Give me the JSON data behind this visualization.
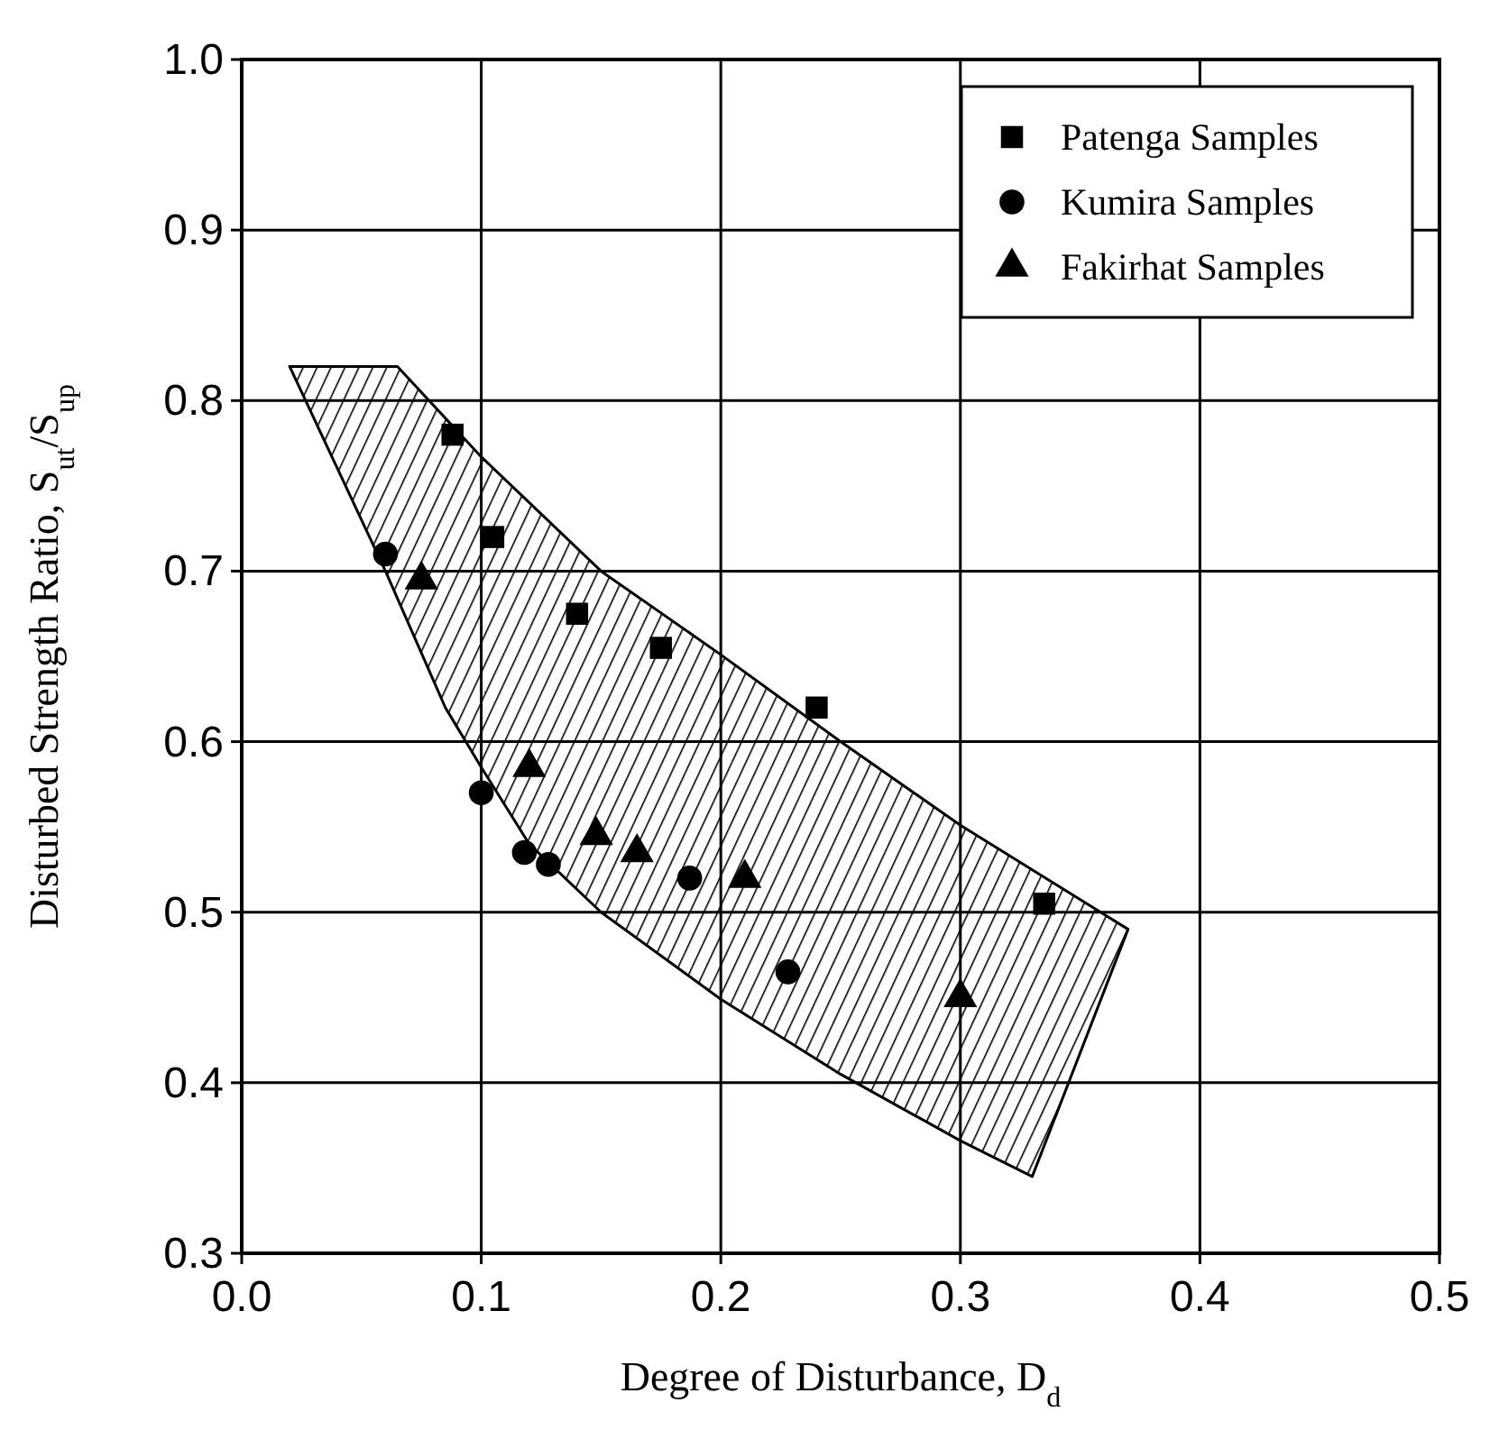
{
  "chart_data": {
    "type": "scatter",
    "xlabel": "Degree of Disturbance, D$_{d}$",
    "ylabel": "Disturbed Strength Ratio, S$_{ut}$/S$_{up}$",
    "xlim": [
      0,
      0.5
    ],
    "xticks": [
      {
        "value": 0,
        "label": "0.0"
      },
      0.1,
      0.2,
      0.3,
      0.4,
      0.5
    ],
    "ylim": [
      0.3,
      1.0
    ],
    "yticks": [
      0.3,
      0.4,
      0.5,
      0.6,
      0.7,
      0.8,
      0.9,
      {
        "value": 1.0,
        "label": "1.0"
      }
    ],
    "grid": true,
    "legend": "top right",
    "series": [
      {
        "type": "area",
        "color": "#000000",
        "x": [
          0.02,
          0.065,
          0.1,
          0.15,
          0.2,
          0.25,
          0.3,
          0.37,
          0.33,
          0.3,
          0.25,
          0.2,
          0.15,
          0.12,
          0.1,
          0.085,
          0.06,
          0.04,
          0.02
        ],
        "values": [
          0.82,
          0.82,
          0.767,
          0.7,
          0.651,
          0.6,
          0.551,
          0.49,
          0.345,
          0.366,
          0.405,
          0.449,
          0.5,
          0.54,
          0.585,
          0.62,
          0.7,
          0.76,
          0.82
        ]
      },
      {
        "name": "Patenga Samples",
        "color": "#000000",
        "marker": "square",
        "x": [
          0.088,
          0.105,
          0.14,
          0.175,
          0.24,
          0.335
        ],
        "values": [
          0.78,
          0.72,
          0.675,
          0.655,
          0.62,
          0.505
        ]
      },
      {
        "name": "Kumira Samples",
        "color": "#000000",
        "marker": "circle",
        "x": [
          0.06,
          0.1,
          0.118,
          0.128,
          0.187,
          0.228
        ],
        "values": [
          0.71,
          0.57,
          0.535,
          0.528,
          0.52,
          0.465
        ]
      },
      {
        "name": "Fakirhat Samples",
        "color": "#000000",
        "marker": "triangle",
        "x": [
          0.075,
          0.12,
          0.148,
          0.165,
          0.21,
          0.3
        ],
        "values": [
          0.695,
          0.585,
          0.545,
          0.535,
          0.52,
          0.45
        ]
      }
    ]
  }
}
